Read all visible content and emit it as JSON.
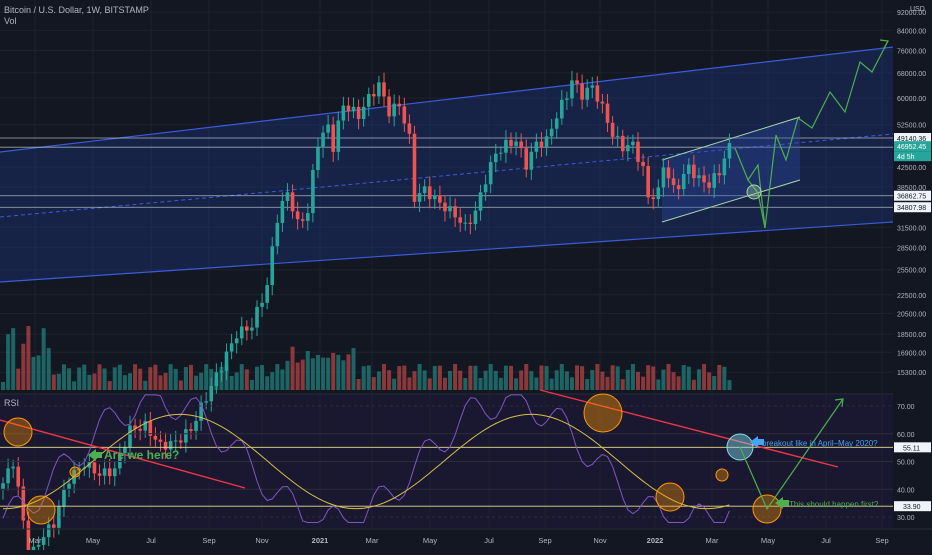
{
  "header": {
    "symbol_title": "Bitcoin / U.S. Dollar, 1W, BITSTAMP",
    "volume_label": "Vol",
    "rsi_label": "RSI"
  },
  "price_axis": {
    "currency": "USD",
    "ticks": [
      "92000.00",
      "84000.00",
      "76000.00",
      "68000.00",
      "60000.00",
      "52500.00",
      "42500.00",
      "38500.00",
      "31500.00",
      "28500.00",
      "25500.00",
      "22500.00",
      "20500.00",
      "18500.00",
      "16900.00",
      "15300.00"
    ],
    "badges": [
      {
        "value": "49140.36",
        "style": "white"
      },
      {
        "value": "46952.45",
        "style": "green"
      },
      {
        "value": "4d 5h",
        "style": "green"
      },
      {
        "value": "36862.75",
        "style": "white"
      },
      {
        "value": "34807.98",
        "style": "white"
      }
    ]
  },
  "rsi_axis": {
    "ticks": [
      "70.00",
      "60.00",
      "50.00",
      "40.00",
      "30.00"
    ],
    "badges": [
      {
        "value": "55.11",
        "style": "white"
      },
      {
        "value": "33.90",
        "style": "white"
      }
    ]
  },
  "time_axis": {
    "labels": [
      "Mar",
      "May",
      "Jul",
      "Sep",
      "Nov",
      "2021",
      "Mar",
      "May",
      "Jul",
      "Sep",
      "Nov",
      "2022",
      "Mar",
      "May",
      "Jul",
      "Sep"
    ]
  },
  "annotations": {
    "are_we_here": "Are we here?",
    "breakout": "breakout like in April–May 2020?",
    "should_happen": "This should happen first?"
  },
  "colors": {
    "background": "#131722",
    "bull": "#26a69a",
    "bear": "#ef5350",
    "channel_fill": "#1e3a8a",
    "channel_line": "#3b5bdb",
    "projection": "#4caf50",
    "rsi_line": "#7e57c2",
    "rsi_ma": "#d4c04a",
    "trendline": "#f23645"
  },
  "chart_data": [
    {
      "type": "candlestick",
      "title": "Bitcoin / U.S. Dollar, 1W, BITSTAMP",
      "x": [
        "2020-03",
        "2020-05",
        "2020-07",
        "2020-09",
        "2020-11",
        "2021-01",
        "2021-03",
        "2021-05",
        "2021-07",
        "2021-09",
        "2021-11",
        "2022-01",
        "2022-03"
      ],
      "close_approx": [
        6500,
        9500,
        9800,
        11000,
        18500,
        33000,
        58000,
        37000,
        40000,
        44000,
        57000,
        38000,
        46952.45
      ],
      "last_price": 46952.45,
      "levels": [
        49140.36,
        36862.75,
        34807.98
      ],
      "ylim": [
        15300,
        92000
      ],
      "scale": "log"
    },
    {
      "type": "line",
      "title": "RSI",
      "series": [],
      "levels": [
        55.11,
        33.9
      ],
      "ylim": [
        30,
        70
      ]
    }
  ]
}
